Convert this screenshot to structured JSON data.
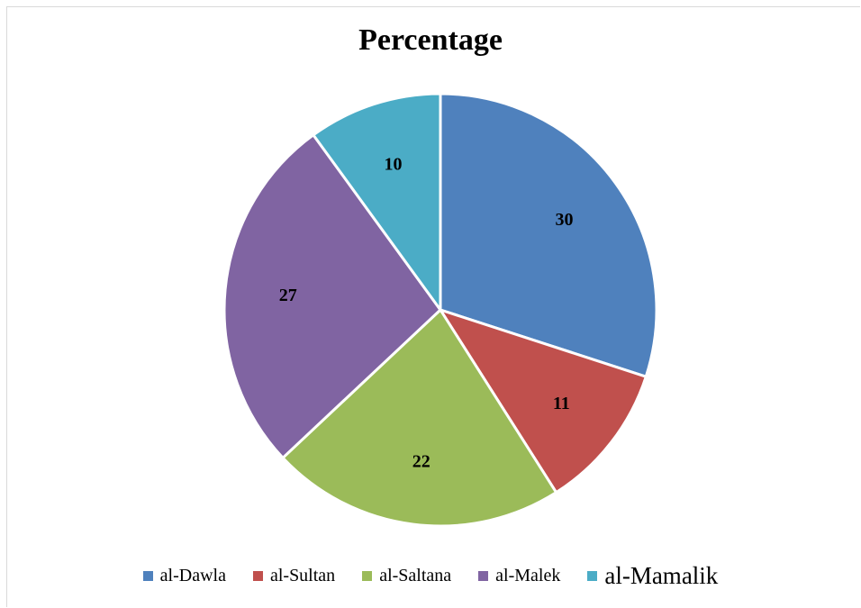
{
  "chart_data": {
    "type": "pie",
    "title": "Percentage",
    "categories": [
      "al-Dawla",
      "al-Sultan",
      "al-Saltana",
      "al-Malek",
      "al-Mamalik"
    ],
    "values": [
      30,
      11,
      22,
      27,
      10
    ],
    "colors": [
      "#4f81bd",
      "#c0504d",
      "#9bbb59",
      "#8064a2",
      "#4bacc6"
    ],
    "data_labels": [
      "30",
      "11",
      "22",
      "27",
      "10"
    ],
    "legend_position": "bottom"
  }
}
